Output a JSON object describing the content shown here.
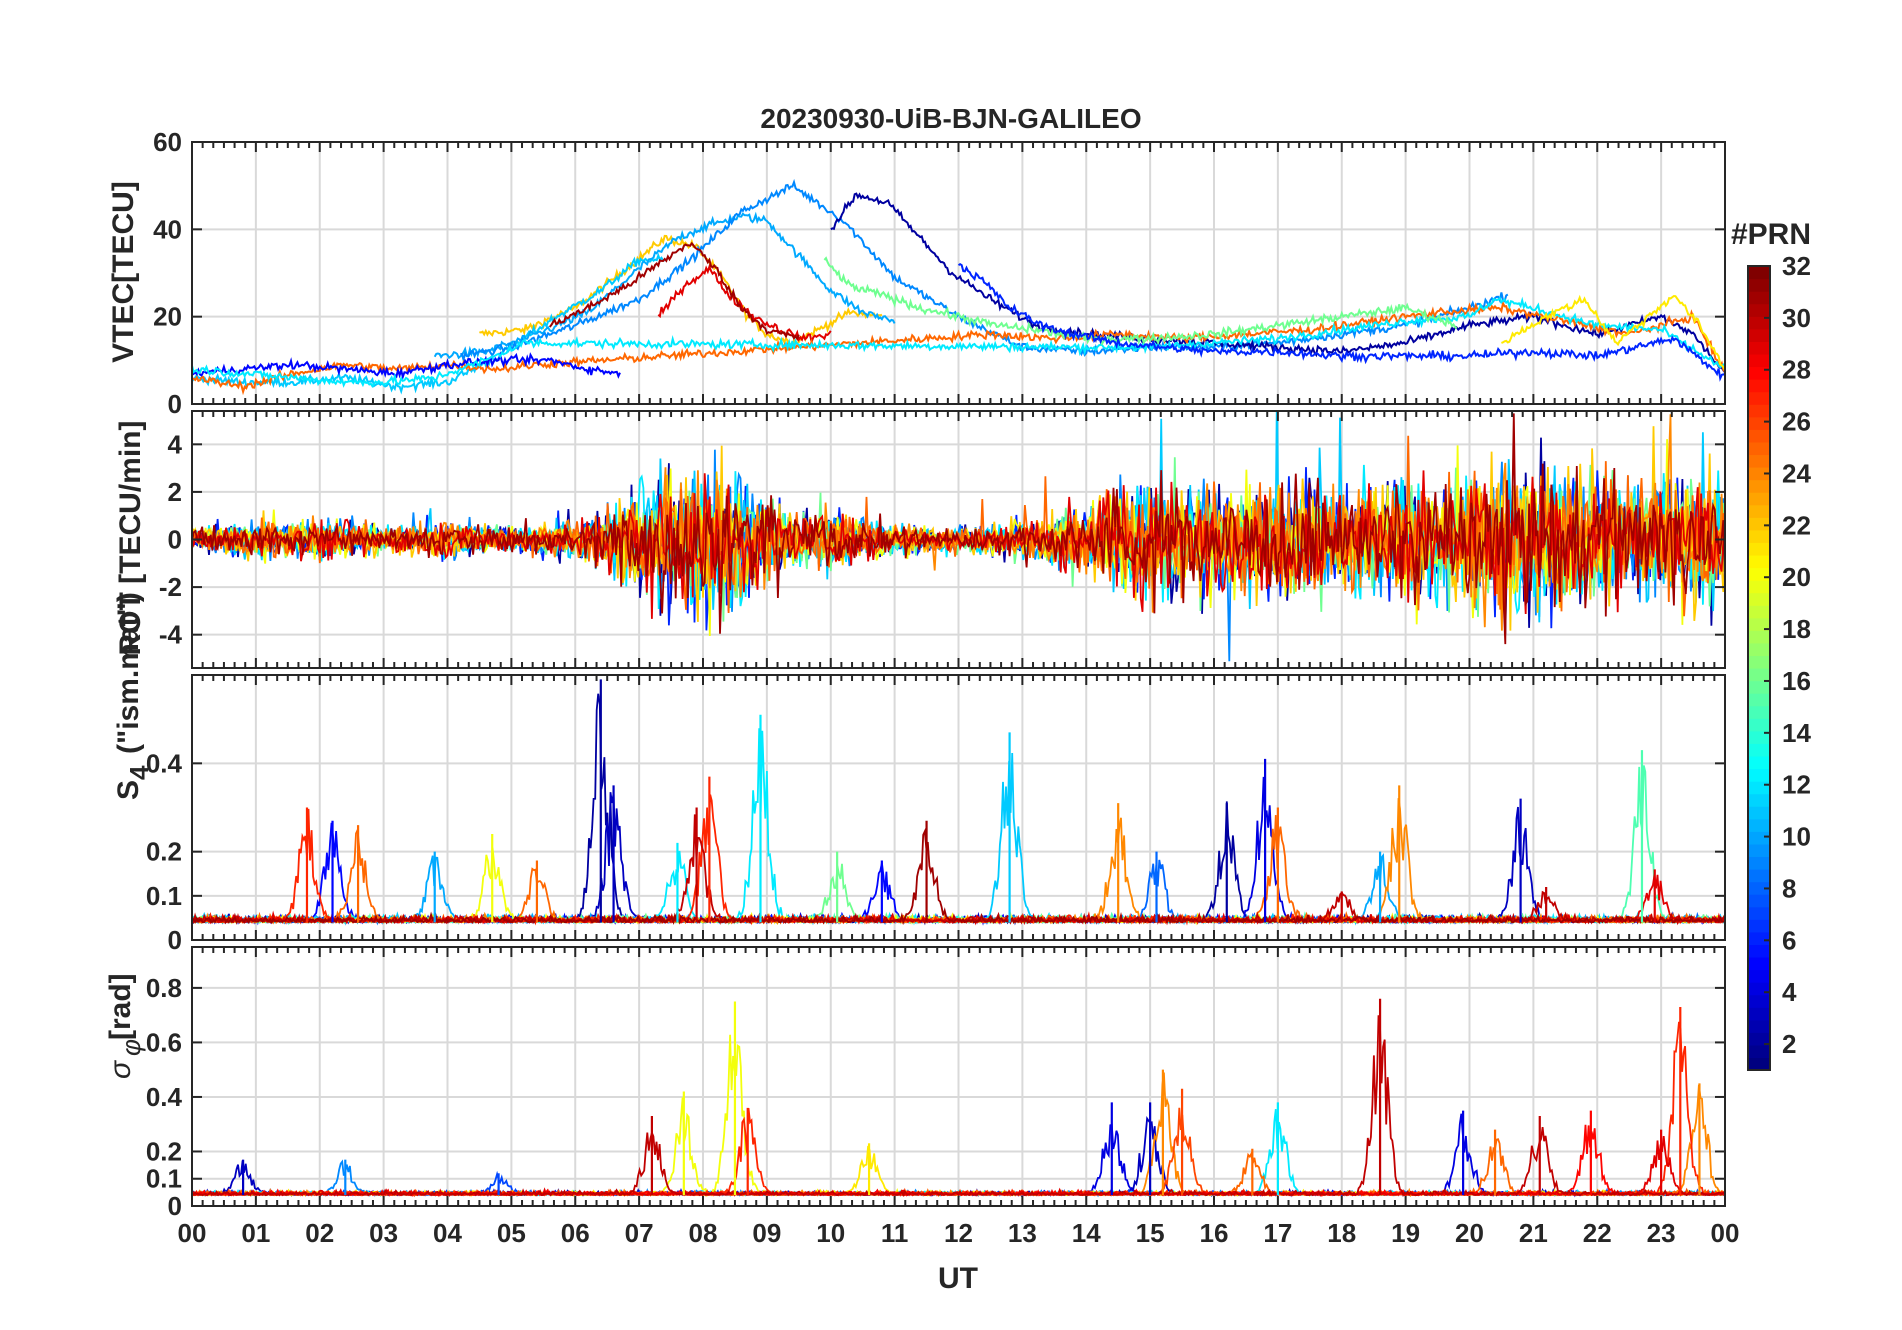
{
  "chart_data": {
    "type": "line",
    "title": "20230930-UiB-BJN-GALILEO",
    "xlabel": "UT",
    "x_tick_labels": [
      "00",
      "01",
      "02",
      "03",
      "04",
      "05",
      "06",
      "07",
      "08",
      "09",
      "10",
      "11",
      "12",
      "13",
      "14",
      "15",
      "16",
      "17",
      "18",
      "19",
      "20",
      "21",
      "22",
      "23",
      "00"
    ],
    "xlim": [
      0,
      24
    ],
    "colorbar": {
      "title": "#PRN",
      "range": [
        1,
        32
      ],
      "tick_labels": [
        "2",
        "4",
        "6",
        "8",
        "10",
        "12",
        "14",
        "16",
        "18",
        "20",
        "22",
        "24",
        "26",
        "28",
        "30",
        "32"
      ],
      "colormap": "jet"
    },
    "panels": [
      {
        "id": "vtec",
        "ylabel": "VTEC[TECU]",
        "ylim": [
          0,
          60
        ],
        "y_ticks": [
          0,
          20,
          40,
          60
        ],
        "y_tick_labels": [
          "0",
          "20",
          "40",
          "60"
        ],
        "series": [
          {
            "prn": 22,
            "x": [
              4.5,
              5.2,
              6,
              6.8,
              7.4,
              7.9,
              8.3,
              8.7,
              9.0,
              9.4,
              9.8,
              10.3,
              10.8
            ],
            "y": [
              16,
              17,
              22,
              31,
              38,
              36,
              29,
              20,
              16,
              14,
              17,
              21,
              20
            ]
          },
          {
            "prn": 11,
            "x": [
              0,
              0.8,
              1.6,
              2.4,
              3.2,
              4.0,
              4.8,
              5.6,
              6.4,
              7.0,
              7.4
            ],
            "y": [
              6,
              5,
              5,
              6,
              4,
              5,
              11,
              19,
              26,
              33,
              33
            ]
          },
          {
            "prn": 10,
            "x": [
              3.8,
              4.6,
              5.4,
              6.2,
              7.0,
              7.6,
              8.1,
              8.6,
              9.0,
              9.5,
              10.0,
              10.5,
              11.0
            ],
            "y": [
              11,
              12,
              16,
              21,
              31,
              38,
              41,
              43,
              42,
              34,
              26,
              21,
              19
            ]
          },
          {
            "prn": 9,
            "x": [
              4.2,
              5.0,
              6.0,
              7.0,
              7.8,
              8.6,
              9.4,
              10.2,
              11.0,
              12.0,
              13.0,
              14.0,
              15.0,
              16.0,
              17.0,
              18.0,
              19.0,
              20.0,
              20.6
            ],
            "y": [
              11,
              13,
              18,
              24,
              33,
              44,
              50,
              42,
              29,
              20,
              13,
              12,
              13,
              13,
              14,
              16,
              18,
              22,
              25
            ]
          },
          {
            "prn": 2,
            "x": [
              10.0,
              10.4,
              10.9,
              11.4,
              11.9,
              12.5,
              13.2,
              14.0,
              15.0,
              16.0,
              17.0,
              18.0,
              19.0,
              20.0,
              21.0,
              22.0,
              23.0,
              23.5,
              24.0
            ],
            "y": [
              40,
              48,
              46,
              38,
              30,
              24,
              18,
              16,
              15,
              14,
              13,
              12,
              14,
              18,
              20,
              16,
              20,
              16,
              7
            ]
          },
          {
            "prn": 29,
            "x": [
              7.3,
              7.7,
              8.1,
              8.4,
              8.8,
              9.2,
              9.6,
              10.0
            ],
            "y": [
              20,
              27,
              31,
              25,
              20,
              17,
              15,
              16
            ]
          },
          {
            "prn": 31,
            "x": [
              5.6,
              6.2,
              6.8,
              7.3,
              7.8,
              8.2,
              8.6,
              9.0,
              9.5
            ],
            "y": [
              18,
              22,
              27,
              32,
              37,
              31,
              22,
              17,
              15
            ]
          },
          {
            "prn": 25,
            "x": [
              0,
              0.8,
              1.6,
              2.4,
              3.2,
              4.0,
              4.8,
              5.4,
              12.5,
              13.5,
              14.5,
              15.5,
              16.5,
              17.5,
              18.5,
              19.5,
              20.5,
              21.5,
              22.5,
              23.5,
              24.0
            ],
            "y": [
              6,
              4,
              7,
              9,
              8,
              9,
              8,
              9,
              16,
              15,
              16,
              15,
              16,
              17,
              19,
              21,
              22,
              19,
              16,
              20,
              7
            ]
          },
          {
            "prn": 5,
            "x": [
              0,
              0.8,
              1.6,
              2.4,
              3.2,
              4.0,
              4.8,
              5.6,
              6.2,
              6.7
            ],
            "y": [
              7,
              8,
              9,
              8,
              7,
              9,
              10,
              10,
              8,
              7
            ]
          },
          {
            "prn": 12,
            "x": [
              0,
              0.8,
              1.6,
              2.4,
              3.0,
              3.8,
              4.6,
              5.2,
              14,
              15,
              16,
              17,
              18,
              19,
              20,
              20.4,
              21,
              22,
              23,
              24
            ],
            "y": [
              8,
              7,
              6,
              5,
              5,
              6,
              10,
              14,
              13,
              13,
              14,
              15,
              17,
              19,
              20,
              24,
              22,
              18,
              17,
              8
            ]
          },
          {
            "prn": 16,
            "x": [
              9.9,
              10.3,
              10.8,
              11.4,
              12.0,
              12.6,
              13.2,
              14.0,
              15.0,
              16.0,
              17.0,
              18.0,
              19.0,
              19.8
            ],
            "y": [
              33,
              27,
              25,
              22,
              20,
              18,
              17,
              15,
              15,
              16,
              18,
              20,
              22,
              18
            ]
          },
          {
            "prn": 6,
            "x": [
              12.0,
              12.4,
              12.8,
              13.3,
              13.8,
              14.5,
              15.2,
              16.0,
              17.0,
              18.0,
              19.0,
              20.0,
              21.0,
              22.0,
              22.6,
              23.2,
              24.0
            ],
            "y": [
              32,
              28,
              22,
              18,
              16,
              14,
              13,
              12,
              12,
              11,
              11,
              11,
              12,
              11,
              13,
              15,
              6
            ]
          },
          {
            "prn": 21,
            "x": [
              20.5,
              21.2,
              21.8,
              22.3,
              22.8,
              23.2,
              23.6,
              24.0
            ],
            "y": [
              14,
              20,
              24,
              14,
              20,
              25,
              18,
              8
            ]
          }
        ]
      },
      {
        "id": "rot",
        "ylabel": "ROT [TECU/min]",
        "ylim": [
          -5.4,
          5.4
        ],
        "y_ticks": [
          -4,
          -2,
          0,
          2,
          4
        ],
        "y_tick_labels": [
          "-4",
          "-2",
          "0",
          "2",
          "4"
        ],
        "envelope": {
          "description_free": true,
          "x": [
            0,
            1,
            2,
            3,
            4,
            5,
            6,
            6.5,
            7,
            7.5,
            8,
            8.5,
            9,
            9.5,
            10,
            10.5,
            11,
            12,
            13,
            14,
            14.5,
            15,
            15.5,
            16,
            16.5,
            17,
            17.5,
            18,
            18.5,
            19,
            19.5,
            20,
            20.5,
            21,
            21.5,
            22,
            22.5,
            23,
            23.5,
            24
          ],
          "amp": [
            0.5,
            0.8,
            1.0,
            0.6,
            0.8,
            0.6,
            0.9,
            1.5,
            2.6,
            3.0,
            3.5,
            3.2,
            2.0,
            1.4,
            1.5,
            1.0,
            0.7,
            0.6,
            0.9,
            1.6,
            2.6,
            2.8,
            2.6,
            2.6,
            2.4,
            2.8,
            2.6,
            2.2,
            2.6,
            2.8,
            2.6,
            3.0,
            3.6,
            3.6,
            3.2,
            3.0,
            2.6,
            3.0,
            3.0,
            2.6
          ]
        },
        "prns": [
          2,
          6,
          9,
          11,
          12,
          16,
          20,
          22,
          24,
          25,
          29,
          31
        ]
      },
      {
        "id": "s4",
        "ylabel": "S4 (\"ism.mat\")",
        "ylim": [
          0,
          0.6
        ],
        "y_ticks": [
          0,
          0.1,
          0.2,
          0.4
        ],
        "y_tick_labels": [
          "0",
          "0.1",
          "0.2",
          "0.4"
        ],
        "peaks": [
          {
            "x": 1.8,
            "y": 0.3,
            "prn": 27
          },
          {
            "x": 2.2,
            "y": 0.27,
            "prn": 5
          },
          {
            "x": 2.6,
            "y": 0.26,
            "prn": 25
          },
          {
            "x": 3.8,
            "y": 0.2,
            "prn": 10
          },
          {
            "x": 4.7,
            "y": 0.24,
            "prn": 20
          },
          {
            "x": 5.4,
            "y": 0.18,
            "prn": 25
          },
          {
            "x": 6.4,
            "y": 0.59,
            "prn": 2
          },
          {
            "x": 6.6,
            "y": 0.35,
            "prn": 3
          },
          {
            "x": 7.6,
            "y": 0.22,
            "prn": 12
          },
          {
            "x": 7.9,
            "y": 0.3,
            "prn": 30
          },
          {
            "x": 8.1,
            "y": 0.37,
            "prn": 27
          },
          {
            "x": 8.9,
            "y": 0.51,
            "prn": 12
          },
          {
            "x": 10.1,
            "y": 0.2,
            "prn": 16
          },
          {
            "x": 10.8,
            "y": 0.18,
            "prn": 5
          },
          {
            "x": 11.5,
            "y": 0.27,
            "prn": 31
          },
          {
            "x": 12.8,
            "y": 0.47,
            "prn": 11
          },
          {
            "x": 14.5,
            "y": 0.31,
            "prn": 24
          },
          {
            "x": 15.1,
            "y": 0.2,
            "prn": 8
          },
          {
            "x": 16.2,
            "y": 0.31,
            "prn": 2
          },
          {
            "x": 16.8,
            "y": 0.41,
            "prn": 4
          },
          {
            "x": 17.0,
            "y": 0.3,
            "prn": 25
          },
          {
            "x": 18.0,
            "y": 0.11,
            "prn": 30
          },
          {
            "x": 18.6,
            "y": 0.2,
            "prn": 10
          },
          {
            "x": 18.9,
            "y": 0.35,
            "prn": 24
          },
          {
            "x": 20.8,
            "y": 0.32,
            "prn": 3
          },
          {
            "x": 21.2,
            "y": 0.12,
            "prn": 30
          },
          {
            "x": 22.7,
            "y": 0.43,
            "prn": 15
          },
          {
            "x": 22.9,
            "y": 0.16,
            "prn": 29
          }
        ]
      },
      {
        "id": "sigma_phi",
        "ylabel": "σφ[rad]",
        "ylim": [
          0,
          0.95
        ],
        "y_ticks": [
          0,
          0.1,
          0.2,
          0.4,
          0.6,
          0.8
        ],
        "y_tick_labels": [
          "0",
          "0.1",
          "0.2",
          "0.4",
          "0.6",
          "0.8"
        ],
        "peaks": [
          {
            "x": 0.8,
            "y": 0.17,
            "prn": 3
          },
          {
            "x": 2.4,
            "y": 0.17,
            "prn": 9
          },
          {
            "x": 4.8,
            "y": 0.12,
            "prn": 7
          },
          {
            "x": 7.2,
            "y": 0.33,
            "prn": 30
          },
          {
            "x": 7.7,
            "y": 0.42,
            "prn": 20
          },
          {
            "x": 8.5,
            "y": 0.75,
            "prn": 20
          },
          {
            "x": 8.7,
            "y": 0.36,
            "prn": 27
          },
          {
            "x": 10.6,
            "y": 0.23,
            "prn": 21
          },
          {
            "x": 14.4,
            "y": 0.38,
            "prn": 4
          },
          {
            "x": 15.0,
            "y": 0.38,
            "prn": 3
          },
          {
            "x": 15.2,
            "y": 0.5,
            "prn": 24
          },
          {
            "x": 15.5,
            "y": 0.43,
            "prn": 26
          },
          {
            "x": 16.6,
            "y": 0.21,
            "prn": 25
          },
          {
            "x": 17.0,
            "y": 0.38,
            "prn": 12
          },
          {
            "x": 18.6,
            "y": 0.76,
            "prn": 30
          },
          {
            "x": 19.9,
            "y": 0.35,
            "prn": 4
          },
          {
            "x": 20.4,
            "y": 0.28,
            "prn": 25
          },
          {
            "x": 21.1,
            "y": 0.33,
            "prn": 30
          },
          {
            "x": 21.9,
            "y": 0.35,
            "prn": 28
          },
          {
            "x": 23.0,
            "y": 0.28,
            "prn": 29
          },
          {
            "x": 23.3,
            "y": 0.73,
            "prn": 27
          },
          {
            "x": 23.6,
            "y": 0.45,
            "prn": 24
          }
        ]
      }
    ]
  }
}
